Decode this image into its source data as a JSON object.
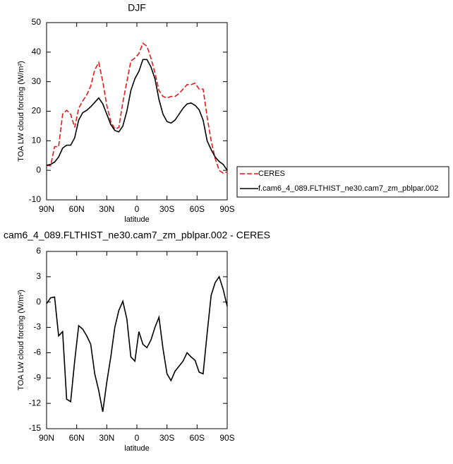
{
  "chart_data": [
    {
      "type": "line",
      "title": "DJF",
      "x_label": "latitude",
      "y_label": "TOA LW cloud forcing (W/m²)",
      "x": [
        90,
        86,
        82,
        78,
        74,
        70,
        66,
        62,
        58,
        54,
        50,
        46,
        42,
        38,
        34,
        30,
        26,
        22,
        18,
        14,
        10,
        6,
        2,
        -2,
        -6,
        -10,
        -14,
        -18,
        -22,
        -26,
        -30,
        -34,
        -38,
        -42,
        -46,
        -50,
        -54,
        -58,
        -62,
        -66,
        -70,
        -74,
        -78,
        -82,
        -86,
        -90
      ],
      "series": [
        {
          "name": "CERES",
          "color": "#e41a1c",
          "dash": true,
          "values": [
            1.7,
            1.5,
            8,
            8,
            19,
            20.3,
            19,
            14.5,
            21,
            23.5,
            25.5,
            28.5,
            34,
            36.5,
            30,
            22,
            16.5,
            14,
            14.5,
            23,
            30,
            37,
            38,
            39.5,
            43,
            42,
            38,
            33,
            27,
            25,
            24.5,
            25,
            25,
            26,
            27.5,
            29,
            29,
            29.5,
            27.5,
            27.5,
            18,
            10,
            4,
            0,
            -1,
            -0.5
          ]
        },
        {
          "name": "f.cam6_4_089.FLTHIST_ne30.cam7_zm_pblpar.002",
          "color": "#000000",
          "dash": false,
          "values": [
            1.7,
            2,
            2.8,
            4.5,
            7.5,
            8.5,
            8.5,
            11,
            17,
            19.5,
            20.3,
            21.5,
            23,
            24.5,
            22.5,
            19,
            15.5,
            13.5,
            13,
            15,
            20,
            27,
            31,
            33.5,
            37.5,
            37.5,
            35,
            31,
            24,
            19,
            16.5,
            16,
            17,
            19,
            21,
            22.5,
            22.8,
            22,
            20.5,
            17,
            10,
            7,
            4.5,
            3,
            2,
            0
          ]
        }
      ],
      "xlim": [
        90,
        -90
      ],
      "xticks": [
        {
          "value": 90,
          "label": "90N"
        },
        {
          "value": 60,
          "label": "60N"
        },
        {
          "value": 30,
          "label": "30N"
        },
        0,
        {
          "value": -30,
          "label": "30S"
        },
        {
          "value": -60,
          "label": "60S"
        },
        {
          "value": -90,
          "label": "90S"
        }
      ],
      "ylim": [
        -10,
        50
      ],
      "yticks": [
        -10,
        0,
        10,
        20,
        30,
        40,
        50
      ],
      "legend": "right"
    },
    {
      "type": "line",
      "title": "cam6_4_089.FLTHIST_ne30.cam7_zm_pblpar.002 - CERES",
      "x_label": "latitude",
      "y_label": "TOA LW cloud forcing (W/m²)",
      "x": [
        90,
        86,
        82,
        78,
        74,
        70,
        66,
        62,
        58,
        54,
        50,
        46,
        42,
        38,
        34,
        30,
        26,
        22,
        18,
        14,
        10,
        6,
        2,
        -2,
        -6,
        -10,
        -14,
        -18,
        -22,
        -26,
        -30,
        -34,
        -38,
        -42,
        -46,
        -50,
        -54,
        -58,
        -62,
        -66,
        -70,
        -74,
        -78,
        -82,
        -86,
        -90
      ],
      "series": [
        {
          "color": "#000000",
          "dash": false,
          "values": [
            -0.2,
            0.5,
            0.6,
            -4,
            -3.5,
            -11.5,
            -11.8,
            -7,
            -2.8,
            -3.2,
            -4,
            -5,
            -8.5,
            -10.5,
            -13,
            -9.5,
            -6.5,
            -3,
            -1,
            0.1,
            -2,
            -6.5,
            -7,
            -3.5,
            -5,
            -5.4,
            -4.5,
            -3,
            -1.8,
            -5.5,
            -8.5,
            -9.3,
            -8.2,
            -7.6,
            -7,
            -6,
            -6.5,
            -6.9,
            -8.3,
            -8.5,
            -3.7,
            0.8,
            2.3,
            3,
            1.5,
            -0.5
          ]
        }
      ],
      "xlim": [
        90,
        -90
      ],
      "xticks": [
        {
          "value": 90,
          "label": "90N"
        },
        {
          "value": 60,
          "label": "60N"
        },
        {
          "value": 30,
          "label": "30N"
        },
        0,
        {
          "value": -30,
          "label": "30S"
        },
        {
          "value": -60,
          "label": "60S"
        },
        {
          "value": -90,
          "label": "90S"
        }
      ],
      "ylim": [
        -15,
        6
      ],
      "yticks": [
        -15,
        -12,
        -9,
        -6,
        -3,
        0,
        3,
        6
      ]
    }
  ]
}
